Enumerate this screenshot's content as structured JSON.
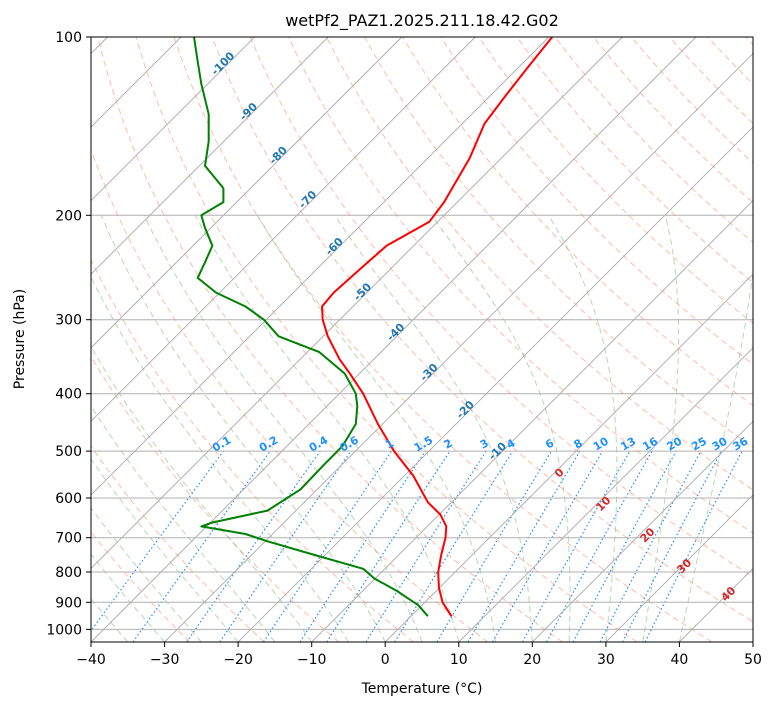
{
  "chart_data": {
    "type": "line",
    "title": "wetPf2_PAZ1.2025.211.18.42.G02",
    "xlabel": "Temperature (°C)",
    "ylabel": "Pressure (hPa)",
    "xlim": [
      -40,
      50
    ],
    "ylim": [
      1050,
      100
    ],
    "y_scale": "log",
    "grid": true,
    "x_ticks": [
      -40,
      -30,
      -20,
      -10,
      0,
      10,
      20,
      30,
      40,
      50
    ],
    "y_ticks": [
      100,
      200,
      300,
      400,
      500,
      600,
      700,
      800,
      900,
      1000
    ],
    "skew": "skew-T",
    "series": [
      {
        "color": "#ff0000",
        "points": [
          [
            9.0,
            950
          ],
          [
            7.8,
            900
          ],
          [
            7.3,
            850
          ],
          [
            7.2,
            800
          ],
          [
            7.6,
            750
          ],
          [
            8.2,
            700
          ],
          [
            8.3,
            670
          ],
          [
            7.5,
            640
          ],
          [
            5.8,
            610
          ],
          [
            3.8,
            550
          ],
          [
            1.2,
            500
          ],
          [
            -1.0,
            450
          ],
          [
            -3.0,
            400
          ],
          [
            -4.8,
            370
          ],
          [
            -6.2,
            350
          ],
          [
            -7.8,
            320
          ],
          [
            -8.5,
            300
          ],
          [
            -8.6,
            285
          ],
          [
            -7.0,
            270
          ],
          [
            -3.2,
            245
          ],
          [
            0.2,
            225
          ],
          [
            6.0,
            205
          ],
          [
            8.0,
            190
          ],
          [
            11.5,
            160
          ],
          [
            13.5,
            140
          ],
          [
            16.5,
            125
          ],
          [
            19.5,
            112
          ],
          [
            22.7,
            100
          ]
        ]
      },
      {
        "color": "#008000",
        "points": [
          [
            5.8,
            950
          ],
          [
            4.5,
            910
          ],
          [
            1.5,
            860
          ],
          [
            -1.5,
            820
          ],
          [
            -3.0,
            790
          ],
          [
            -11.0,
            740
          ],
          [
            -16.0,
            710
          ],
          [
            -19.0,
            690
          ],
          [
            -25.0,
            670
          ],
          [
            -23.5,
            660
          ],
          [
            -16.0,
            630
          ],
          [
            -11.5,
            580
          ],
          [
            -8.5,
            530
          ],
          [
            -5.8,
            490
          ],
          [
            -4.0,
            450
          ],
          [
            -3.8,
            420
          ],
          [
            -4.0,
            400
          ],
          [
            -5.5,
            370
          ],
          [
            -9.0,
            340
          ],
          [
            -14.5,
            320
          ],
          [
            -16.5,
            300
          ],
          [
            -19.0,
            285
          ],
          [
            -23.0,
            270
          ],
          [
            -25.5,
            255
          ],
          [
            -24.5,
            240
          ],
          [
            -23.5,
            225
          ],
          [
            -24.5,
            210
          ],
          [
            -25.0,
            200
          ],
          [
            -22.0,
            190
          ],
          [
            -22.0,
            180
          ],
          [
            -24.5,
            165
          ],
          [
            -24.0,
            150
          ],
          [
            -24.0,
            135
          ],
          [
            -25.0,
            120
          ],
          [
            -25.5,
            110
          ],
          [
            -26.0,
            100
          ]
        ]
      }
    ],
    "mixing_ratio_labels": [
      "0.1",
      "0.2",
      "0.4",
      "0.6",
      "1",
      "1.5",
      "2",
      "3",
      "4",
      "6",
      "8",
      "10",
      "13",
      "16",
      "20",
      "25",
      "30",
      "36"
    ],
    "moist_adiabat_labels": [
      "-100",
      "-90",
      "-80",
      "-70",
      "-60",
      "-50",
      "-40",
      "-30",
      "-20",
      "-10"
    ],
    "dry_adiabat_labels": [
      "0",
      "10",
      "20",
      "30",
      "40"
    ]
  }
}
